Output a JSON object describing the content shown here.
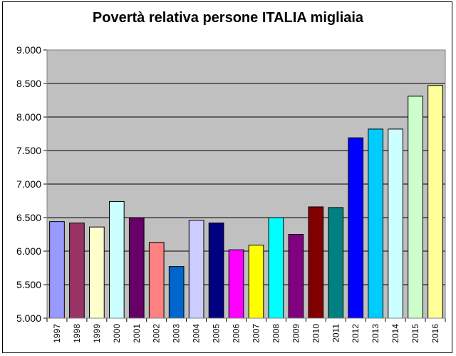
{
  "chart_data": {
    "type": "bar",
    "title": "Povertà relativa persone ITALIA migliaia",
    "xlabel": "",
    "ylabel": "",
    "ylim": [
      5000,
      9000
    ],
    "yticks": [
      5000,
      5500,
      6000,
      6500,
      7000,
      7500,
      8000,
      8500,
      9000
    ],
    "ytick_labels": [
      "5.000",
      "5.500",
      "6.000",
      "6.500",
      "7.000",
      "7.500",
      "8.000",
      "8.500",
      "9.000"
    ],
    "grid": true,
    "legend": "none",
    "plot_background": "#c0c0c0",
    "categories": [
      "1997",
      "1998",
      "1999",
      "2000",
      "2001",
      "2002",
      "2003",
      "2004",
      "2005",
      "2006",
      "2007",
      "2008",
      "2009",
      "2010",
      "2011",
      "2012",
      "2013",
      "2014",
      "2015",
      "2016"
    ],
    "values": [
      6440,
      6420,
      6360,
      6740,
      6500,
      6130,
      5770,
      6460,
      6420,
      6020,
      6090,
      6500,
      6250,
      6660,
      6650,
      7690,
      7820,
      7820,
      8310,
      8470
    ],
    "colors": [
      "#9999ff",
      "#993366",
      "#ffffcc",
      "#ccffff",
      "#660066",
      "#ff8080",
      "#0066cc",
      "#ccccff",
      "#000080",
      "#ff00ff",
      "#ffff00",
      "#00ffff",
      "#800080",
      "#800000",
      "#008080",
      "#0000ff",
      "#00ccff",
      "#ccffff",
      "#ccffcc",
      "#ffff99"
    ]
  }
}
